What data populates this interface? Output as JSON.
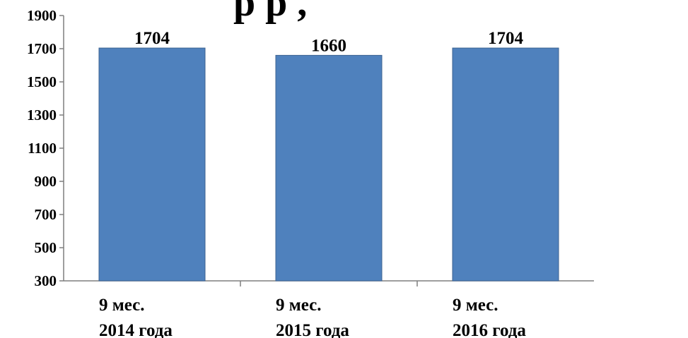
{
  "chart_data": {
    "type": "bar",
    "title": "",
    "title_fragment": "р      р      ,",
    "categories": [
      [
        "9 мес.",
        "2014 года"
      ],
      [
        "9 мес.",
        "2015 года"
      ],
      [
        "9 мес.",
        "2016 года"
      ]
    ],
    "values": [
      1704,
      1660,
      1704
    ],
    "data_labels": [
      "1704",
      "1660",
      "1704"
    ],
    "xlabel": "",
    "ylabel": "",
    "ylim": [
      300,
      1900
    ],
    "yticks": [
      "1900",
      "1700",
      "1500",
      "1300",
      "1100",
      "900",
      "700",
      "500",
      "300"
    ],
    "grid": false,
    "legend": "none",
    "bar_color": "#4f81bd",
    "bar_edge_color": "#3c6391"
  }
}
